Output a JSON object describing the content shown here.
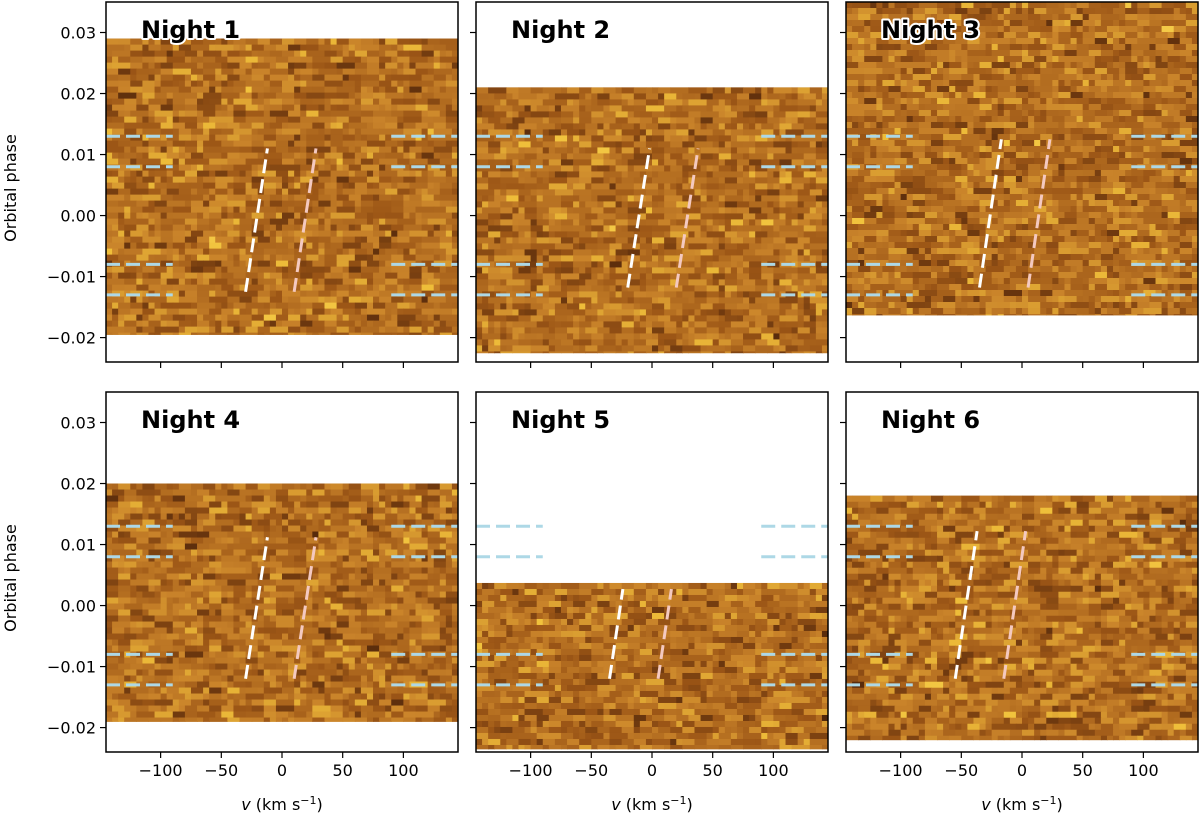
{
  "chart_data": {
    "type": "heatmap",
    "layout": {
      "rows": 2,
      "cols": 3,
      "sharex": true,
      "sharey": true
    },
    "xlabel": "v (km s⁻¹)",
    "xlabel_var": "v",
    "xlabel_unit": " (km s",
    "xlabel_exp": "−1",
    "xlabel_close": ")",
    "ylabel": "Orbital phase",
    "xlim": [
      -145,
      145
    ],
    "ylim": [
      -0.024,
      0.035
    ],
    "xticks": [
      -100,
      -50,
      0,
      50,
      100
    ],
    "xtick_labels": [
      "−100",
      "−50",
      "0",
      "50",
      "100"
    ],
    "yticks": [
      -0.02,
      -0.01,
      0.0,
      0.01,
      0.02,
      0.03
    ],
    "ytick_labels": [
      "−0.02",
      "−0.01",
      "0.00",
      "0.01",
      "0.02",
      "0.03"
    ],
    "colormap": [
      "#1e0e04",
      "#5a2c0c",
      "#9c5616",
      "#c9832a",
      "#f0c03a",
      "#fde46a"
    ],
    "transit_markers": {
      "phases": [
        0.013,
        0.008,
        -0.008,
        -0.013
      ],
      "left_span": [
        -145,
        -90
      ],
      "right_span": [
        90,
        145
      ],
      "color": "#add8e6"
    },
    "trail_colors": {
      "left": "#ffffff",
      "right": "#f4c9c0"
    },
    "panels": [
      {
        "title": "Night 1",
        "phase_range": [
          -0.0195,
          0.029
        ],
        "trail_left": {
          "x_start": -30,
          "x_end": -12,
          "phase_start": -0.0125,
          "phase_end": 0.011
        },
        "trail_right": {
          "x_start": 10,
          "x_end": 28,
          "phase_start": -0.0125,
          "phase_end": 0.011
        }
      },
      {
        "title": "Night 2",
        "phase_range": [
          -0.0225,
          0.021
        ],
        "trail_left": {
          "x_start": -20,
          "x_end": -2,
          "phase_start": -0.0118,
          "phase_end": 0.011
        },
        "trail_right": {
          "x_start": 20,
          "x_end": 38,
          "phase_start": -0.0118,
          "phase_end": 0.011
        }
      },
      {
        "title": "Night 3",
        "phase_range": [
          -0.0163,
          0.035
        ],
        "trail_left": {
          "x_start": -35,
          "x_end": -17,
          "phase_start": -0.0118,
          "phase_end": 0.0125
        },
        "trail_right": {
          "x_start": 5,
          "x_end": 23,
          "phase_start": -0.0118,
          "phase_end": 0.0125
        }
      },
      {
        "title": "Night 4",
        "phase_range": [
          -0.019,
          0.02
        ],
        "trail_left": {
          "x_start": -30,
          "x_end": -12,
          "phase_start": -0.012,
          "phase_end": 0.0112
        },
        "trail_right": {
          "x_start": 10,
          "x_end": 28,
          "phase_start": -0.012,
          "phase_end": 0.0112
        }
      },
      {
        "title": "Night 5",
        "phase_range": [
          -0.0235,
          0.0037
        ],
        "trail_left": {
          "x_start": -35,
          "x_end": -24,
          "phase_start": -0.012,
          "phase_end": 0.0027
        },
        "trail_right": {
          "x_start": 5,
          "x_end": 16,
          "phase_start": -0.012,
          "phase_end": 0.0027
        }
      },
      {
        "title": "Night 6",
        "phase_range": [
          -0.022,
          0.018
        ],
        "trail_left": {
          "x_start": -55,
          "x_end": -37,
          "phase_start": -0.012,
          "phase_end": 0.0122
        },
        "trail_right": {
          "x_start": -15,
          "x_end": 3,
          "phase_start": -0.012,
          "phase_end": 0.0122
        }
      }
    ]
  }
}
